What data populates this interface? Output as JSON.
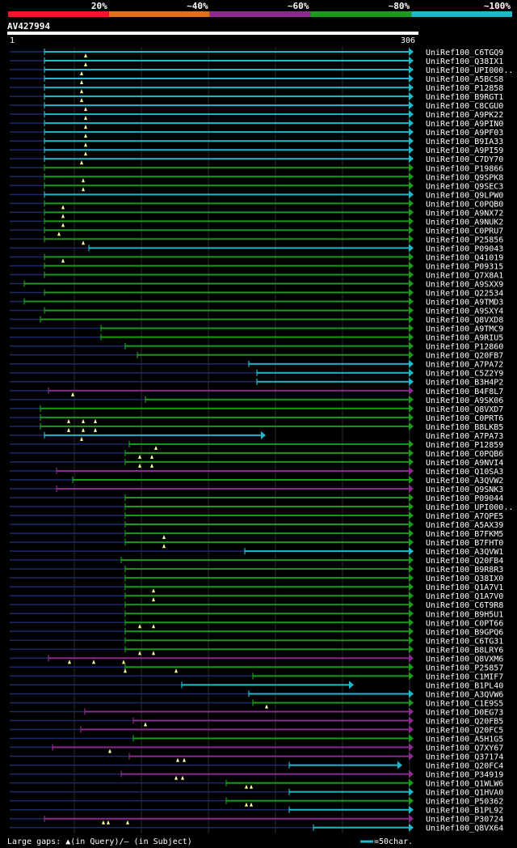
{
  "chart_data": {
    "type": "alignment-overview",
    "query": "AV427994",
    "query_start": "1",
    "query_end": "306",
    "legend_scale": [
      {
        "label": "20%",
        "color": "#e8192c"
      },
      {
        "label": "~40%",
        "color": "#e06f1a"
      },
      {
        "label": "~60%",
        "color": "#8b2b8f"
      },
      {
        "label": "~80%",
        "color": "#1b9a1b"
      },
      {
        "label": "~100%",
        "color": "#1fb8c8"
      }
    ],
    "footer_left": "Large gaps: ▲(in Query)/– (in Subject)",
    "footer_right": "=50char.",
    "hits": [
      {
        "name": "UniRef100_C6TGQ9",
        "color": "cyan",
        "start": 55,
        "end": 506,
        "marks": [
          106
        ]
      },
      {
        "name": "UniRef100_Q38IX1",
        "color": "cyan",
        "start": 55,
        "end": 506,
        "marks": [
          106
        ]
      },
      {
        "name": "UniRef100_UPI000..",
        "color": "cyan",
        "start": 55,
        "end": 506,
        "marks": [
          101
        ]
      },
      {
        "name": "UniRef100_A5BCS8",
        "color": "cyan",
        "start": 55,
        "end": 506,
        "marks": [
          101
        ]
      },
      {
        "name": "UniRef100_P12858",
        "color": "cyan",
        "start": 55,
        "end": 506,
        "marks": [
          101
        ]
      },
      {
        "name": "UniRef100_B9RGT1",
        "color": "cyan",
        "start": 55,
        "end": 506,
        "marks": [
          101
        ]
      },
      {
        "name": "UniRef100_C8CGU0",
        "color": "cyan",
        "start": 55,
        "end": 506,
        "marks": [
          106
        ]
      },
      {
        "name": "UniRef100_A9PK22",
        "color": "cyan",
        "start": 55,
        "end": 506,
        "marks": [
          106
        ]
      },
      {
        "name": "UniRef100_A9PIN0",
        "color": "cyan",
        "start": 55,
        "end": 506,
        "marks": [
          106
        ]
      },
      {
        "name": "UniRef100_A9PF03",
        "color": "cyan",
        "start": 55,
        "end": 506,
        "marks": [
          106
        ]
      },
      {
        "name": "UniRef100_B9IA33",
        "color": "cyan",
        "start": 55,
        "end": 506,
        "marks": [
          106
        ]
      },
      {
        "name": "UniRef100_A9PI59",
        "color": "cyan",
        "start": 55,
        "end": 506,
        "marks": [
          106
        ]
      },
      {
        "name": "UniRef100_C7DY70",
        "color": "cyan",
        "start": 55,
        "end": 506,
        "marks": [
          101
        ]
      },
      {
        "name": "UniRef100_P19866",
        "color": "green",
        "start": 55,
        "end": 506,
        "marks": []
      },
      {
        "name": "UniRef100_Q9SPK8",
        "color": "green",
        "start": 55,
        "end": 506,
        "marks": [
          103
        ]
      },
      {
        "name": "UniRef100_Q9SEC3",
        "color": "green",
        "start": 55,
        "end": 506,
        "marks": [
          103
        ]
      },
      {
        "name": "UniRef100_Q9LPW0",
        "color": "cyan",
        "start": 55,
        "end": 506,
        "marks": []
      },
      {
        "name": "UniRef100_C0PQB0",
        "color": "green",
        "start": 55,
        "end": 506,
        "marks": [
          78
        ]
      },
      {
        "name": "UniRef100_A9NX72",
        "color": "green",
        "start": 55,
        "end": 506,
        "marks": [
          78
        ]
      },
      {
        "name": "UniRef100_A9NUK2",
        "color": "green",
        "start": 55,
        "end": 506,
        "marks": [
          78
        ]
      },
      {
        "name": "UniRef100_C0PRU7",
        "color": "green",
        "start": 55,
        "end": 506,
        "marks": [
          73
        ]
      },
      {
        "name": "UniRef100_P25856",
        "color": "green",
        "start": 55,
        "end": 506,
        "marks": [
          103
        ]
      },
      {
        "name": "UniRef100_P09043",
        "color": "cyan",
        "start": 110,
        "end": 506,
        "marks": []
      },
      {
        "name": "UniRef100_Q41019",
        "color": "green",
        "start": 55,
        "end": 506,
        "marks": [
          78
        ]
      },
      {
        "name": "UniRef100_P09315",
        "color": "green",
        "start": 55,
        "end": 506,
        "marks": []
      },
      {
        "name": "UniRef100_Q7X8A1",
        "color": "green",
        "start": 55,
        "end": 506,
        "marks": []
      },
      {
        "name": "UniRef100_A9SXX9",
        "color": "green",
        "start": 30,
        "end": 506,
        "marks": []
      },
      {
        "name": "UniRef100_Q22534",
        "color": "green",
        "start": 55,
        "end": 506,
        "marks": []
      },
      {
        "name": "UniRef100_A9TMD3",
        "color": "green",
        "start": 30,
        "end": 506,
        "marks": []
      },
      {
        "name": "UniRef100_A9SXY4",
        "color": "green",
        "start": 55,
        "end": 506,
        "marks": []
      },
      {
        "name": "UniRef100_Q8VXD8",
        "color": "green",
        "start": 50,
        "end": 506,
        "marks": []
      },
      {
        "name": "UniRef100_A9TMC9",
        "color": "green",
        "start": 125,
        "end": 506,
        "marks": []
      },
      {
        "name": "UniRef100_A9RIU5",
        "color": "green",
        "start": 125,
        "end": 506,
        "marks": []
      },
      {
        "name": "UniRef100_P12860",
        "color": "green",
        "start": 155,
        "end": 506,
        "marks": []
      },
      {
        "name": "UniRef100_Q20FB7",
        "color": "green",
        "start": 170,
        "end": 506,
        "marks": []
      },
      {
        "name": "UniRef100_A7PA72",
        "color": "cyan",
        "start": 308,
        "end": 506,
        "marks": []
      },
      {
        "name": "UniRef100_C5Z2Y9",
        "color": "cyan",
        "start": 318,
        "end": 506,
        "marks": []
      },
      {
        "name": "UniRef100_B3H4P2",
        "color": "cyan",
        "start": 318,
        "end": 506,
        "marks": []
      },
      {
        "name": "UniRef100_B4F8L7",
        "color": "purple",
        "start": 60,
        "end": 506,
        "marks": [
          90
        ]
      },
      {
        "name": "UniRef100_A9SK06",
        "color": "green",
        "start": 180,
        "end": 506,
        "marks": []
      },
      {
        "name": "UniRef100_Q8VXD7",
        "color": "green",
        "start": 50,
        "end": 506,
        "marks": []
      },
      {
        "name": "UniRef100_C0PRT6",
        "color": "green",
        "start": 50,
        "end": 506,
        "marks": [
          85,
          103,
          118
        ]
      },
      {
        "name": "UniRef100_B8LKB5",
        "color": "green",
        "start": 50,
        "end": 506,
        "marks": [
          85,
          103,
          118
        ]
      },
      {
        "name": "UniRef100_A7PA73",
        "color": "cyan",
        "start": 55,
        "end": 323,
        "marks": [
          101
        ]
      },
      {
        "name": "UniRef100_P12859",
        "color": "green",
        "start": 160,
        "end": 506,
        "marks": [
          193
        ]
      },
      {
        "name": "UniRef100_C0PQB6",
        "color": "green",
        "start": 155,
        "end": 506,
        "marks": [
          173,
          188
        ]
      },
      {
        "name": "UniRef100_A9NVI4",
        "color": "green",
        "start": 155,
        "end": 506,
        "marks": [
          173,
          188
        ]
      },
      {
        "name": "UniRef100_Q10SA3",
        "color": "purple",
        "start": 70,
        "end": 506,
        "marks": []
      },
      {
        "name": "UniRef100_A3QVW2",
        "color": "green",
        "start": 90,
        "end": 506,
        "marks": []
      },
      {
        "name": "UniRef100_Q9SNK3",
        "color": "purple",
        "start": 70,
        "end": 506,
        "marks": []
      },
      {
        "name": "UniRef100_P09044",
        "color": "green",
        "start": 155,
        "end": 506,
        "marks": []
      },
      {
        "name": "UniRef100_UPI000..",
        "color": "green",
        "start": 155,
        "end": 506,
        "marks": []
      },
      {
        "name": "UniRef100_A7QPE5",
        "color": "green",
        "start": 155,
        "end": 506,
        "marks": []
      },
      {
        "name": "UniRef100_A5AX39",
        "color": "green",
        "start": 155,
        "end": 506,
        "marks": []
      },
      {
        "name": "UniRef100_B7FKM5",
        "color": "green",
        "start": 155,
        "end": 506,
        "marks": [
          203
        ]
      },
      {
        "name": "UniRef100_B7FHT0",
        "color": "green",
        "start": 155,
        "end": 506,
        "marks": [
          203
        ]
      },
      {
        "name": "UniRef100_A3QVW1",
        "color": "cyan",
        "start": 303,
        "end": 506,
        "marks": []
      },
      {
        "name": "UniRef100_Q20FB4",
        "color": "green",
        "start": 150,
        "end": 506,
        "marks": []
      },
      {
        "name": "UniRef100_B9R8R3",
        "color": "green",
        "start": 155,
        "end": 506,
        "marks": []
      },
      {
        "name": "UniRef100_Q38IX0",
        "color": "green",
        "start": 155,
        "end": 506,
        "marks": []
      },
      {
        "name": "UniRef100_Q1A7V1",
        "color": "green",
        "start": 155,
        "end": 506,
        "marks": [
          190
        ]
      },
      {
        "name": "UniRef100_Q1A7V0",
        "color": "green",
        "start": 155,
        "end": 506,
        "marks": [
          190
        ]
      },
      {
        "name": "UniRef100_C6T9R8",
        "color": "green",
        "start": 155,
        "end": 506,
        "marks": []
      },
      {
        "name": "UniRef100_B9H5U1",
        "color": "green",
        "start": 155,
        "end": 506,
        "marks": []
      },
      {
        "name": "UniRef100_C0PT66",
        "color": "green",
        "start": 155,
        "end": 506,
        "marks": [
          173,
          190
        ]
      },
      {
        "name": "UniRef100_B9GPQ6",
        "color": "green",
        "start": 155,
        "end": 506,
        "marks": []
      },
      {
        "name": "UniRef100_C6TG31",
        "color": "green",
        "start": 155,
        "end": 506,
        "marks": []
      },
      {
        "name": "UniRef100_B8LRY6",
        "color": "green",
        "start": 155,
        "end": 506,
        "marks": [
          173,
          190
        ]
      },
      {
        "name": "UniRef100_Q8VXM6",
        "color": "purple",
        "start": 60,
        "end": 506,
        "marks": [
          86,
          116,
          153
        ]
      },
      {
        "name": "UniRef100_P25857",
        "color": "green",
        "start": 155,
        "end": 506,
        "marks": [
          155,
          218
        ]
      },
      {
        "name": "UniRef100_C1MIF7",
        "color": "green",
        "start": 313,
        "end": 506,
        "marks": []
      },
      {
        "name": "UniRef100_B1PL40",
        "color": "cyan",
        "start": 225,
        "end": 432,
        "marks": []
      },
      {
        "name": "UniRef100_A3QVW6",
        "color": "cyan",
        "start": 308,
        "end": 506,
        "marks": []
      },
      {
        "name": "UniRef100_C1E9S5",
        "color": "green",
        "start": 313,
        "end": 506,
        "marks": [
          330
        ]
      },
      {
        "name": "UniRef100_D0EG73",
        "color": "purple",
        "start": 105,
        "end": 506,
        "marks": []
      },
      {
        "name": "UniRef100_Q20FB5",
        "color": "purple",
        "start": 165,
        "end": 506,
        "marks": [
          180
        ]
      },
      {
        "name": "UniRef100_Q20FC5",
        "color": "purple",
        "start": 100,
        "end": 506,
        "marks": []
      },
      {
        "name": "UniRef100_A5H1G5",
        "color": "green",
        "start": 165,
        "end": 506,
        "marks": []
      },
      {
        "name": "UniRef100_Q7XY67",
        "color": "purple",
        "start": 65,
        "end": 506,
        "marks": [
          136
        ]
      },
      {
        "name": "UniRef100_Q37174",
        "color": "purple",
        "start": 160,
        "end": 506,
        "marks": [
          220,
          228
        ]
      },
      {
        "name": "UniRef100_Q20FC4",
        "color": "cyan",
        "start": 358,
        "end": 492,
        "marks": []
      },
      {
        "name": "UniRef100_P34919",
        "color": "purple",
        "start": 150,
        "end": 506,
        "marks": [
          218,
          226
        ]
      },
      {
        "name": "UniRef100_Q1WLW6",
        "color": "green",
        "start": 280,
        "end": 506,
        "marks": [
          305,
          311
        ]
      },
      {
        "name": "UniRef100_Q1HVA0",
        "color": "cyan",
        "start": 358,
        "end": 506,
        "marks": []
      },
      {
        "name": "UniRef100_P50362",
        "color": "green",
        "start": 280,
        "end": 506,
        "marks": [
          305,
          311
        ]
      },
      {
        "name": "UniRef100_B1PL92",
        "color": "cyan",
        "start": 358,
        "end": 506,
        "marks": []
      },
      {
        "name": "UniRef100_P30724",
        "color": "purple",
        "start": 55,
        "end": 506,
        "marks": [
          128,
          134,
          158
        ]
      },
      {
        "name": "UniRef100_Q8VX64",
        "color": "cyan",
        "start": 388,
        "end": 506,
        "marks": []
      }
    ]
  }
}
